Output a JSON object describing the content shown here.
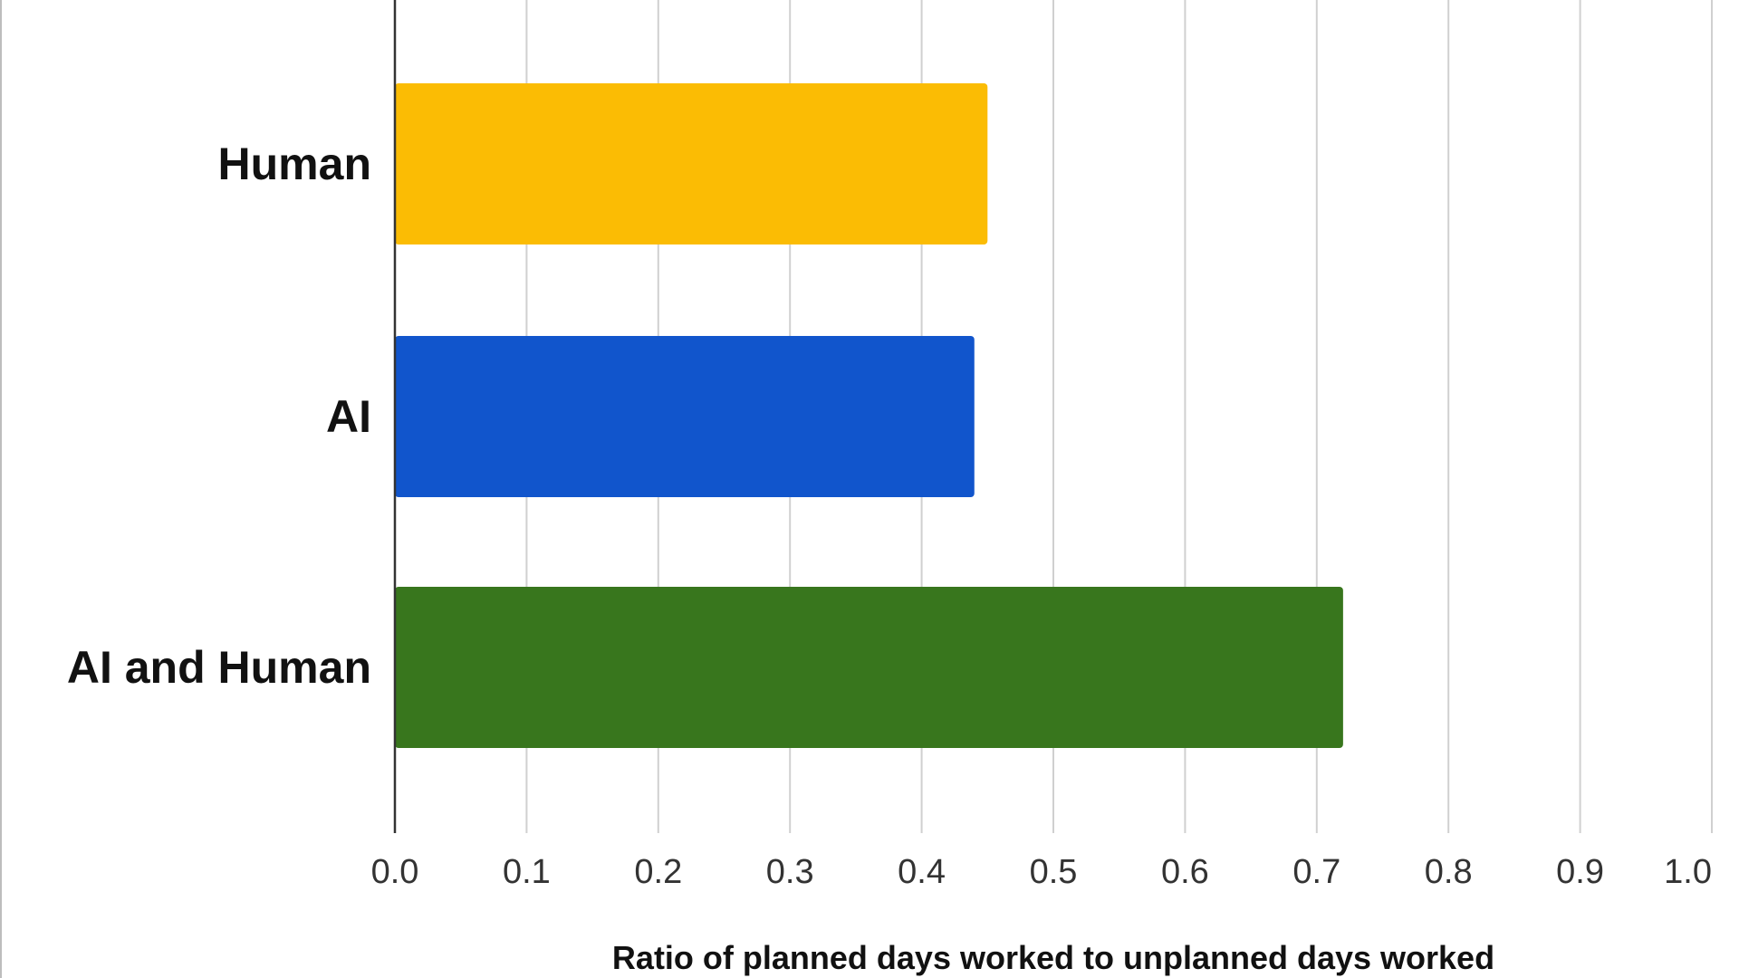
{
  "chart_data": {
    "type": "bar",
    "orientation": "horizontal",
    "categories": [
      "Human",
      "AI",
      "AI and Human"
    ],
    "values": [
      0.45,
      0.44,
      0.72
    ],
    "colors": [
      "#FBBC04",
      "#1155CC",
      "#38761D"
    ],
    "title": "",
    "xlabel": "Ratio of planned days worked to unplanned days worked",
    "ylabel": "",
    "xlim": [
      0.0,
      1.0
    ],
    "x_ticks": [
      0.0,
      0.1,
      0.2,
      0.3,
      0.4,
      0.5,
      0.6,
      0.7,
      0.8,
      0.9,
      1.0
    ],
    "x_tick_labels": [
      "0.0",
      "0.1",
      "0.2",
      "0.3",
      "0.4",
      "0.5",
      "0.6",
      "0.7",
      "0.8",
      "0.9",
      "1.0"
    ],
    "grid": "vertical",
    "legend": "none"
  }
}
